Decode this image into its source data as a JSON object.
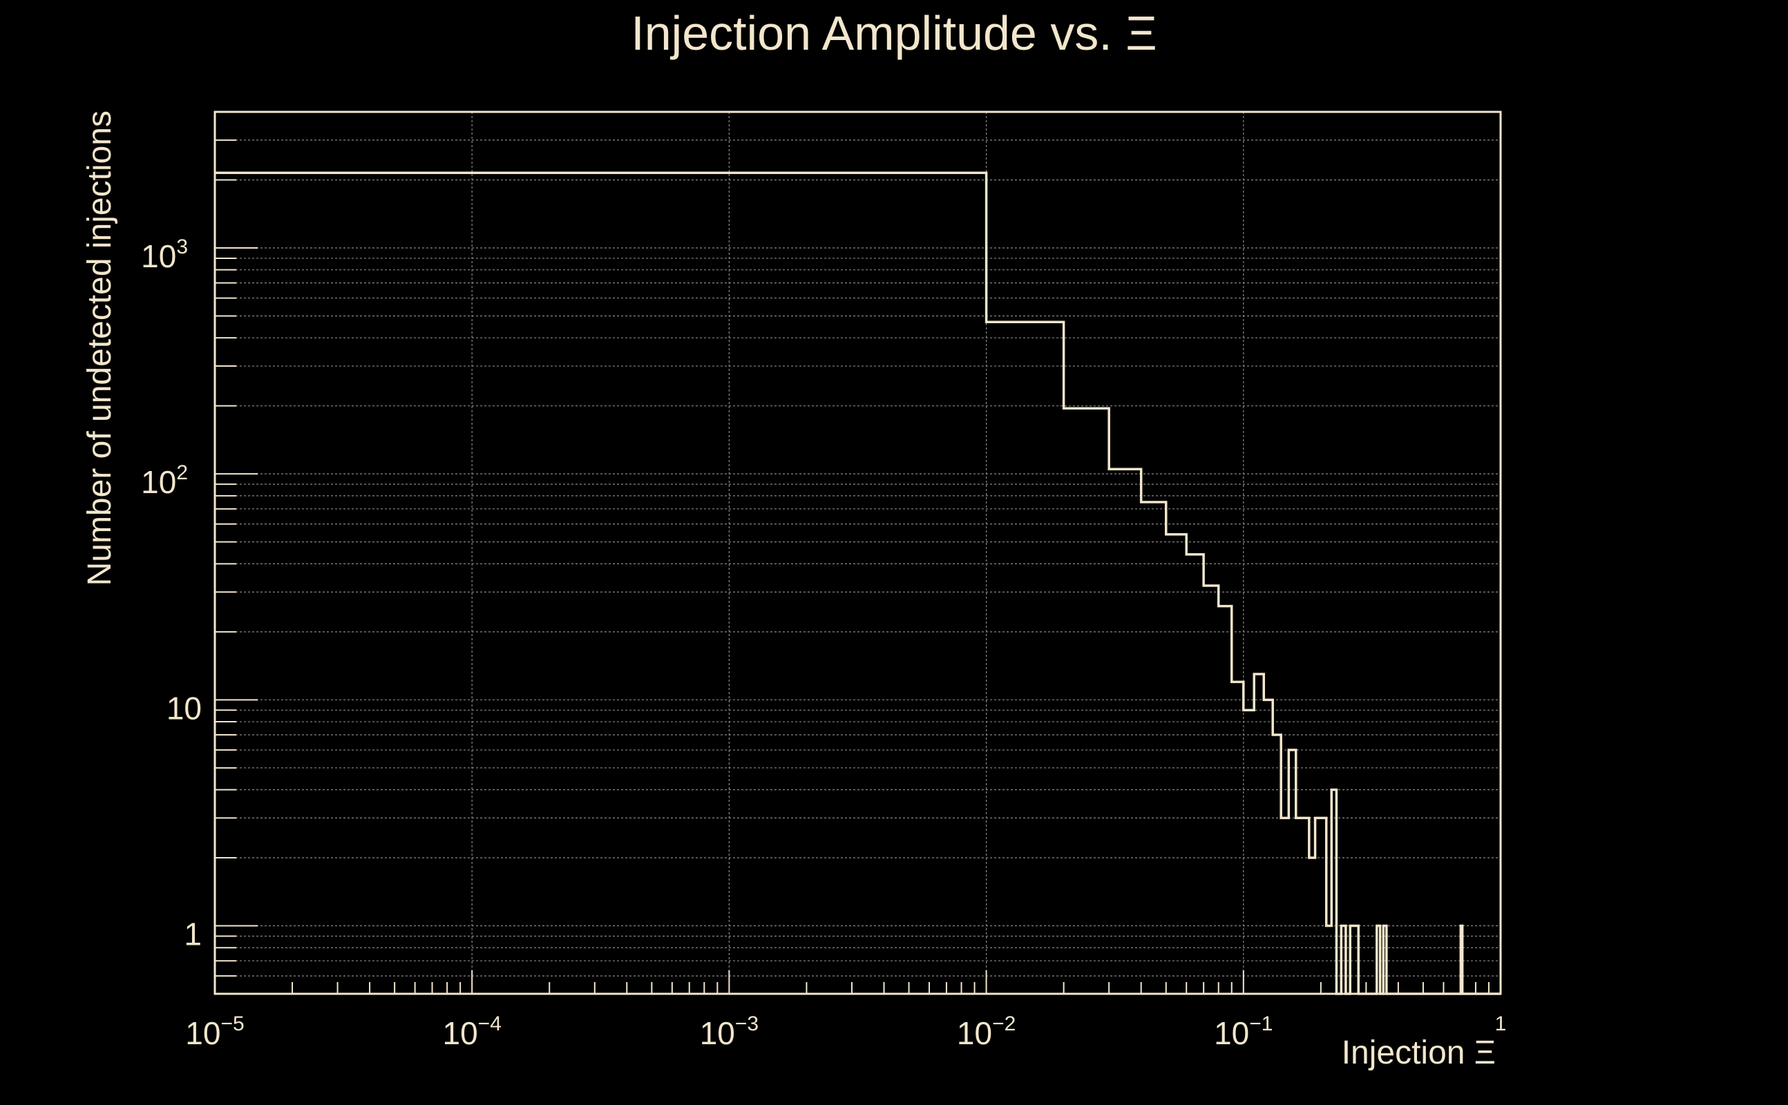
{
  "chart_data": {
    "type": "histogram",
    "title": "Injection Amplitude vs. Ξ",
    "xlabel": "Injection Ξ",
    "ylabel": "Number of undetected injections",
    "xscale": "log",
    "yscale": "log",
    "xlim": [
      1e-05,
      1
    ],
    "ylim": [
      0.5,
      4000
    ],
    "grid": true,
    "x_ticks": [
      {
        "value": 1e-05,
        "base": "10",
        "exp": "−5"
      },
      {
        "value": 0.0001,
        "base": "10",
        "exp": "−4"
      },
      {
        "value": 0.001,
        "base": "10",
        "exp": "−3"
      },
      {
        "value": 0.01,
        "base": "10",
        "exp": "−2"
      },
      {
        "value": 0.1,
        "base": "10",
        "exp": "−1"
      },
      {
        "value": 1,
        "base": "",
        "exp": "1"
      }
    ],
    "y_ticks": [
      {
        "value": 1,
        "base": "1",
        "exp": ""
      },
      {
        "value": 10,
        "base": "10",
        "exp": ""
      },
      {
        "value": 100,
        "base": "10",
        "exp": "2"
      },
      {
        "value": 1000,
        "base": "10",
        "exp": "3"
      }
    ],
    "bins": [
      {
        "x0": 1e-05,
        "x1": 0.01,
        "count": 2150
      },
      {
        "x0": 0.01,
        "x1": 0.02,
        "count": 470
      },
      {
        "x0": 0.02,
        "x1": 0.03,
        "count": 195
      },
      {
        "x0": 0.03,
        "x1": 0.04,
        "count": 105
      },
      {
        "x0": 0.04,
        "x1": 0.05,
        "count": 75
      },
      {
        "x0": 0.05,
        "x1": 0.06,
        "count": 54
      },
      {
        "x0": 0.06,
        "x1": 0.07,
        "count": 44
      },
      {
        "x0": 0.07,
        "x1": 0.08,
        "count": 32
      },
      {
        "x0": 0.08,
        "x1": 0.09,
        "count": 26
      },
      {
        "x0": 0.09,
        "x1": 0.1,
        "count": 12
      },
      {
        "x0": 0.1,
        "x1": 0.11,
        "count": 9
      },
      {
        "x0": 0.11,
        "x1": 0.12,
        "count": 13
      },
      {
        "x0": 0.12,
        "x1": 0.13,
        "count": 10
      },
      {
        "x0": 0.13,
        "x1": 0.14,
        "count": 7
      },
      {
        "x0": 0.14,
        "x1": 0.15,
        "count": 3
      },
      {
        "x0": 0.15,
        "x1": 0.16,
        "count": 6
      },
      {
        "x0": 0.16,
        "x1": 0.17,
        "count": 3
      },
      {
        "x0": 0.17,
        "x1": 0.18,
        "count": 3
      },
      {
        "x0": 0.18,
        "x1": 0.19,
        "count": 2
      },
      {
        "x0": 0.19,
        "x1": 0.2,
        "count": 3
      },
      {
        "x0": 0.2,
        "x1": 0.21,
        "count": 3
      },
      {
        "x0": 0.21,
        "x1": 0.22,
        "count": 1
      },
      {
        "x0": 0.22,
        "x1": 0.23,
        "count": 4
      },
      {
        "x0": 0.23,
        "x1": 0.24,
        "count": 0
      },
      {
        "x0": 0.24,
        "x1": 0.25,
        "count": 1
      },
      {
        "x0": 0.25,
        "x1": 0.26,
        "count": 0
      },
      {
        "x0": 0.26,
        "x1": 0.27,
        "count": 1
      },
      {
        "x0": 0.27,
        "x1": 0.28,
        "count": 1
      },
      {
        "x0": 0.28,
        "x1": 0.33,
        "count": 0
      },
      {
        "x0": 0.33,
        "x1": 0.34,
        "count": 1
      },
      {
        "x0": 0.34,
        "x1": 0.35,
        "count": 0
      },
      {
        "x0": 0.35,
        "x1": 0.36,
        "count": 1
      },
      {
        "x0": 0.36,
        "x1": 0.7,
        "count": 0
      },
      {
        "x0": 0.7,
        "x1": 0.71,
        "count": 1
      },
      {
        "x0": 0.71,
        "x1": 1,
        "count": 0
      }
    ]
  },
  "colors": {
    "background": "#000000",
    "foreground": "#f2e6cc",
    "grid": "#8a8a8a"
  }
}
